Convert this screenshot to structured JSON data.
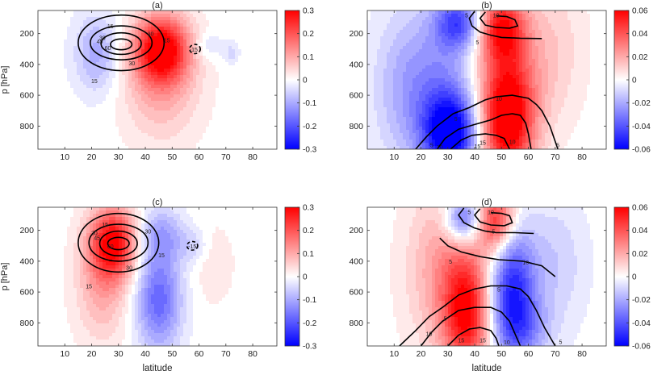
{
  "chart_data": [
    {
      "type": "heatmap",
      "title": "(a)",
      "ylabel": "p [hPa]",
      "xlabel": "",
      "xlim": [
        0,
        89
      ],
      "ylim": [
        950,
        50
      ],
      "xticks": [
        10,
        20,
        30,
        40,
        50,
        60,
        70,
        80
      ],
      "yticks": [
        200,
        400,
        600,
        800
      ],
      "colorbar": {
        "range": [
          -0.3,
          0.3
        ],
        "ticks": [
          "0.3",
          "0.2",
          "0.1",
          "0",
          "-0.1",
          "-0.2",
          "-0.3"
        ]
      },
      "contour_labels": [
        "15",
        "30",
        "45",
        "60",
        "15",
        "30",
        "15",
        "30",
        "-15"
      ],
      "blobs": [
        {
          "lat": 46,
          "p": 300,
          "slat": 7,
          "sp": 150,
          "v": 0.3
        },
        {
          "lat": 46,
          "p": 520,
          "slat": 10,
          "sp": 260,
          "v": 0.1
        },
        {
          "lat": 22,
          "p": 330,
          "slat": 6,
          "sp": 180,
          "v": -0.1
        },
        {
          "lat": 63,
          "p": 280,
          "slat": 4,
          "sp": 60,
          "v": -0.05
        },
        {
          "lat": 72,
          "p": 330,
          "slat": 2,
          "sp": 50,
          "v": -0.05
        }
      ]
    },
    {
      "type": "heatmap",
      "title": "(b)",
      "ylabel": "",
      "xlabel": "",
      "xlim": [
        0,
        89
      ],
      "ylim": [
        950,
        50
      ],
      "xticks": [
        10,
        20,
        30,
        40,
        50,
        60,
        70,
        80
      ],
      "yticks": [
        200,
        400,
        600,
        800
      ],
      "colorbar": {
        "range": [
          -0.06,
          0.06
        ],
        "ticks": [
          "0.06",
          "0.04",
          "0.02",
          "0",
          "-0.02",
          "-0.04",
          "-0.06"
        ]
      },
      "contour_labels": [
        "5",
        "10",
        "5",
        "10",
        "5",
        "5",
        "10",
        "15",
        "10",
        "15",
        "5"
      ],
      "blobs": [
        {
          "lat": 31,
          "p": 850,
          "slat": 7,
          "sp": 180,
          "v": -0.06
        },
        {
          "lat": 26,
          "p": 550,
          "slat": 11,
          "sp": 360,
          "v": -0.025
        },
        {
          "lat": 52,
          "p": 780,
          "slat": 7,
          "sp": 260,
          "v": 0.06
        },
        {
          "lat": 52,
          "p": 450,
          "slat": 9,
          "sp": 330,
          "v": 0.025
        },
        {
          "lat": 34,
          "p": 130,
          "slat": 6,
          "sp": 120,
          "v": -0.04
        },
        {
          "lat": 50,
          "p": 160,
          "slat": 6,
          "sp": 150,
          "v": 0.045
        },
        {
          "lat": 70,
          "p": 300,
          "slat": 8,
          "sp": 350,
          "v": 0.01
        },
        {
          "lat": 12,
          "p": 550,
          "slat": 8,
          "sp": 350,
          "v": -0.01
        }
      ]
    },
    {
      "type": "heatmap",
      "title": "(c)",
      "ylabel": "p [hPa]",
      "xlabel": "latitude",
      "xlim": [
        0,
        89
      ],
      "ylim": [
        950,
        50
      ],
      "xticks": [
        10,
        20,
        30,
        40,
        50,
        60,
        70,
        80
      ],
      "yticks": [
        200,
        400,
        600,
        800
      ],
      "colorbar": {
        "range": [
          -0.3,
          0.3
        ],
        "ticks": [
          "0.3",
          "0.2",
          "0.1",
          "0",
          "-0.1",
          "-0.2",
          "-0.3"
        ]
      },
      "contour_labels": [
        "15",
        "30",
        "45",
        "60",
        "15",
        "30",
        "15",
        "30",
        "-15"
      ],
      "blobs": [
        {
          "lat": 28,
          "p": 280,
          "slat": 6,
          "sp": 160,
          "v": 0.28
        },
        {
          "lat": 24,
          "p": 550,
          "slat": 7,
          "sp": 260,
          "v": 0.1
        },
        {
          "lat": 45,
          "p": 650,
          "slat": 6,
          "sp": 230,
          "v": -0.18
        },
        {
          "lat": 46,
          "p": 230,
          "slat": 6,
          "sp": 120,
          "v": -0.1
        },
        {
          "lat": 58,
          "p": 300,
          "slat": 4,
          "sp": 80,
          "v": -0.05
        },
        {
          "lat": 65,
          "p": 420,
          "slat": 6,
          "sp": 200,
          "v": 0.03
        }
      ]
    },
    {
      "type": "heatmap",
      "title": "(d)",
      "ylabel": "",
      "xlabel": "latitude",
      "xlim": [
        0,
        89
      ],
      "ylim": [
        950,
        50
      ],
      "xticks": [
        10,
        20,
        30,
        40,
        50,
        60,
        70,
        80
      ],
      "yticks": [
        200,
        400,
        600,
        800
      ],
      "colorbar": {
        "range": [
          -0.06,
          0.06
        ],
        "ticks": [
          "0.06",
          "0.04",
          "0.02",
          "0",
          "-0.02",
          "-0.04",
          "-0.06"
        ]
      },
      "contour_labels": [
        "5",
        "10",
        "5",
        "5",
        "10",
        "5",
        "5",
        "10",
        "15",
        "10",
        "15",
        "5"
      ],
      "blobs": [
        {
          "lat": 37,
          "p": 750,
          "slat": 6,
          "sp": 260,
          "v": 0.05
        },
        {
          "lat": 30,
          "p": 450,
          "slat": 10,
          "sp": 380,
          "v": 0.025
        },
        {
          "lat": 54,
          "p": 580,
          "slat": 6,
          "sp": 280,
          "v": -0.05
        },
        {
          "lat": 58,
          "p": 850,
          "slat": 7,
          "sp": 150,
          "v": -0.02
        },
        {
          "lat": 36,
          "p": 130,
          "slat": 5,
          "sp": 110,
          "v": -0.045
        },
        {
          "lat": 48,
          "p": 140,
          "slat": 5,
          "sp": 140,
          "v": 0.05
        },
        {
          "lat": 70,
          "p": 420,
          "slat": 8,
          "sp": 300,
          "v": -0.012
        }
      ]
    }
  ]
}
